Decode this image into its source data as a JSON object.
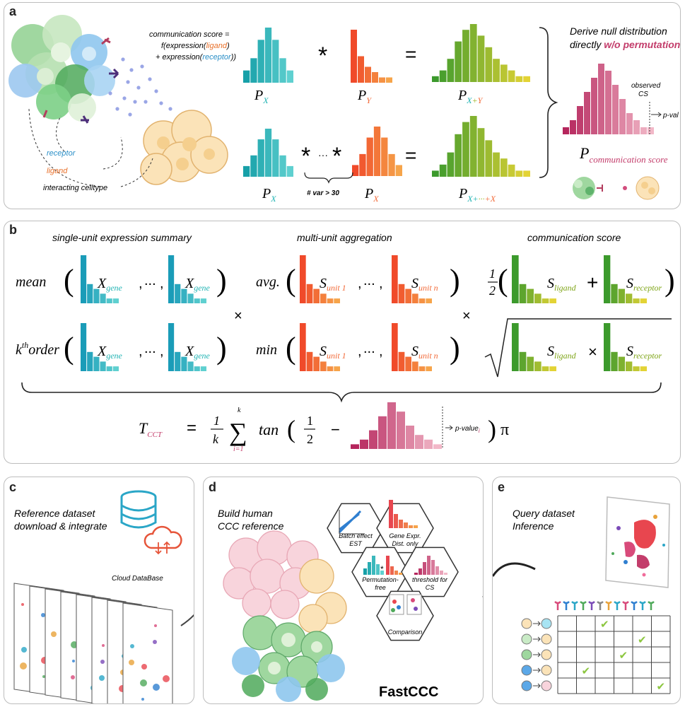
{
  "panels": {
    "a": {
      "label": "a",
      "formula": [
        "communication score =",
        "f(expression(",
        "ligand",
        ")",
        "+ expression(",
        "receptor",
        "))"
      ],
      "legend": {
        "receptor": "receptor",
        "ligand": "ligand",
        "celltype": "interacting celltype"
      },
      "conv_op": "*",
      "dots": "···",
      "eq": "=",
      "row1": {
        "px": "X",
        "py": "Y",
        "sum": "X+Y",
        "P": "P"
      },
      "row2": {
        "px": "X",
        "px2": "X",
        "sum_a": "X+",
        "sum_b": "···",
        "sum_c": "+X",
        "var_note": "# var > 30"
      },
      "null": {
        "line1": "Derive null distribution",
        "line2a": "directly ",
        "line2b": "w/o permutation",
        "observed1": "observed",
        "observed2": "CS",
        "pval": "p-val",
        "cs_P": "P",
        "cs_sub": "communication score"
      },
      "colors": {
        "teal": "#1fb3b3",
        "orange": "#f26b3a",
        "olive": "#9cb320",
        "pink": "#d24d7d",
        "ligand": "#e8702a",
        "receptor": "#2b8fc7"
      }
    },
    "b": {
      "label": "b",
      "headers": [
        "single-unit expression summary",
        "multi-unit aggregation",
        "communication score"
      ],
      "row1": {
        "fn": "mean",
        "fn2": "avg.",
        "x_sub": "gene",
        "s_sub1": "unit 1",
        "s_sub2": "unit n",
        "half_num": "1",
        "half_den": "2",
        "lig_sub": "ligand",
        "rec_sub": "receptor",
        "plus": "+"
      },
      "row2": {
        "fn_k": "k",
        "fn_th": "th",
        "fn_order": "order",
        "fn2": "min",
        "times": "×"
      },
      "ellipsis": "...",
      "comma": ",",
      "times": "×",
      "X": "X",
      "S": "S",
      "tcct": {
        "T": "T",
        "sub": "CCT",
        "eq": "=",
        "one": "1",
        "k": "k",
        "sum": "∑",
        "ktop": "k",
        "ibot": "i=1",
        "tan": "tan",
        "half_num": "1",
        "half_den": "2",
        "minus": "−",
        "pval": "p-value",
        "pval_sub": "i",
        "pi": "π"
      }
    },
    "c": {
      "label": "c",
      "title1": "Reference dataset",
      "title2": "download & integrate",
      "cloud": "Cloud DataBase"
    },
    "d": {
      "label": "d",
      "title1": "Build human",
      "title2": "CCC reference",
      "brand": "FastCCC",
      "hex": {
        "batch1": "Batch effect",
        "batch2": "EST",
        "gene1": "Gene Expr.",
        "gene2": "Dist. only",
        "perm1": "Permutation-",
        "perm2": "free",
        "thr1": "threshold for",
        "thr2": "CS",
        "comp": "Comparison"
      }
    },
    "e": {
      "label": "e",
      "title1": "Query dataset",
      "title2": "Inference",
      "check": "✔"
    }
  }
}
